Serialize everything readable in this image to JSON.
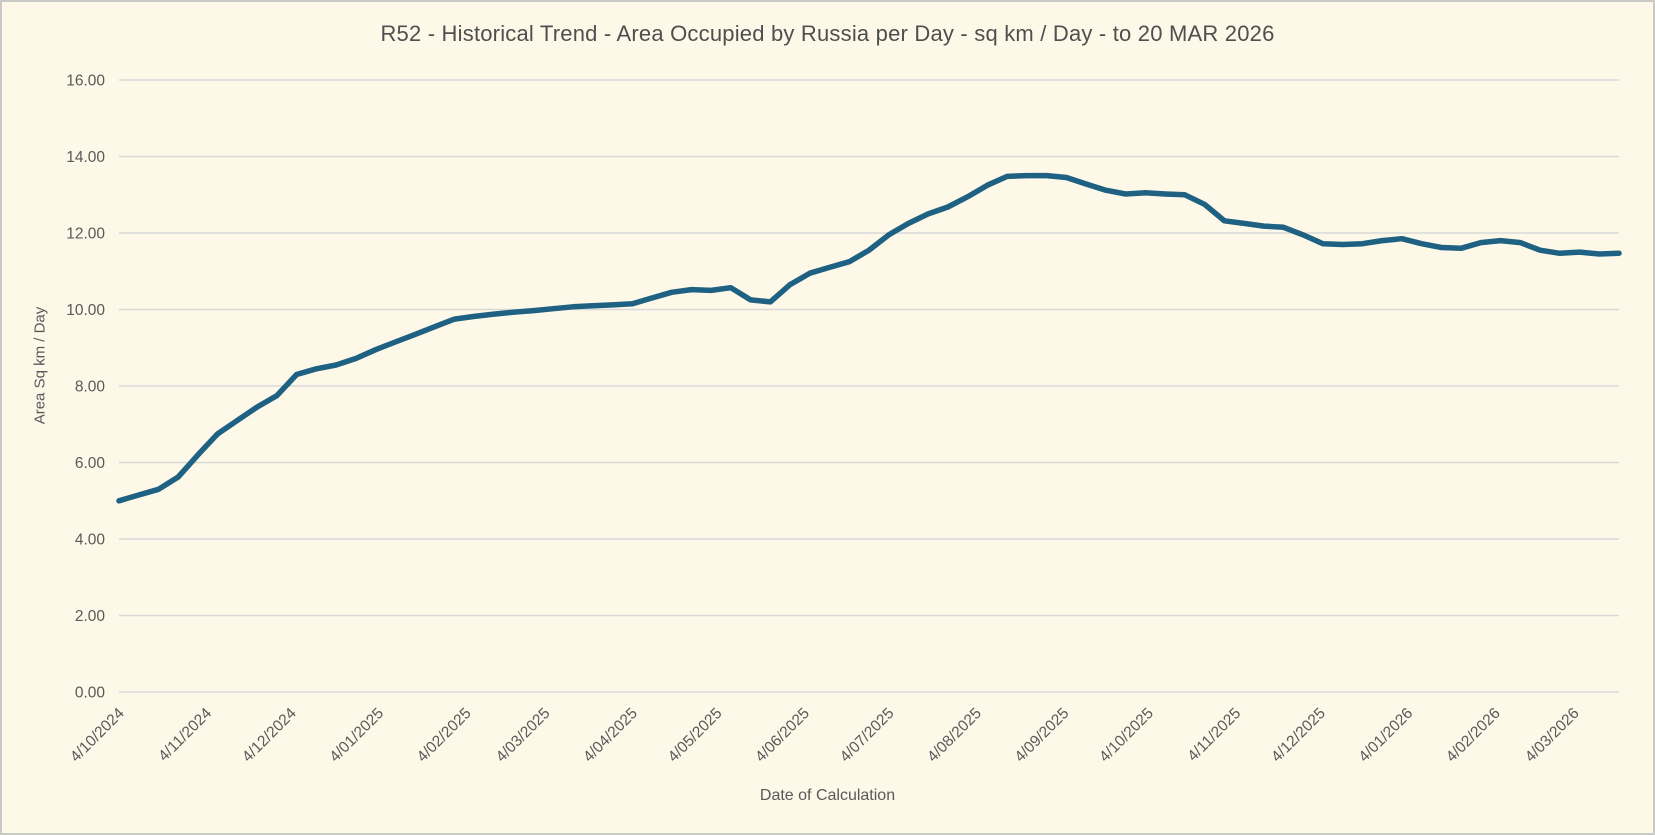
{
  "window": {
    "background_color": "#fdf8e8",
    "border_color": "#c9c9c6"
  },
  "chart_data": {
    "type": "line",
    "title": "R52 - Historical Trend - Area Occupied by Russia per Day - sq km / Day - to 20 MAR 2026",
    "xlabel": "Date of Calculation",
    "ylabel": "Area Sq km / Day",
    "ylim": [
      0,
      16
    ],
    "ytick_step": 2,
    "ytick_labels": [
      "0.00",
      "2.00",
      "4.00",
      "6.00",
      "8.00",
      "10.00",
      "12.00",
      "14.00",
      "16.00"
    ],
    "xtick_labels": [
      "4/10/2024",
      "4/11/2024",
      "4/12/2024",
      "4/01/2025",
      "4/02/2025",
      "4/03/2025",
      "4/04/2025",
      "4/05/2025",
      "4/06/2025",
      "4/07/2025",
      "4/08/2025",
      "4/09/2025",
      "4/10/2025",
      "4/11/2025",
      "4/12/2025",
      "4/01/2026",
      "4/02/2026",
      "4/03/2026"
    ],
    "grid": "horizontal",
    "gridline_color": "#d9d9d9",
    "legend": "none",
    "line_color": "#1e6182",
    "text_color": "#595959",
    "series": [
      {
        "name": "Area occupied by Russia per day (sq km / day)",
        "x": [
          "4/10/2024",
          "11/10/2024",
          "18/10/2024",
          "25/10/2024",
          "1/11/2024",
          "8/11/2024",
          "15/11/2024",
          "22/11/2024",
          "29/11/2024",
          "6/12/2024",
          "13/12/2024",
          "20/12/2024",
          "27/12/2024",
          "3/01/2025",
          "10/01/2025",
          "17/01/2025",
          "24/01/2025",
          "31/01/2025",
          "7/02/2025",
          "14/02/2025",
          "21/02/2025",
          "28/02/2025",
          "7/03/2025",
          "14/03/2025",
          "21/03/2025",
          "28/03/2025",
          "4/04/2025",
          "11/04/2025",
          "18/04/2025",
          "25/04/2025",
          "2/05/2025",
          "9/05/2025",
          "16/05/2025",
          "23/05/2025",
          "30/05/2025",
          "6/06/2025",
          "13/06/2025",
          "20/06/2025",
          "27/06/2025",
          "4/07/2025",
          "11/07/2025",
          "18/07/2025",
          "25/07/2025",
          "1/08/2025",
          "8/08/2025",
          "15/08/2025",
          "22/08/2025",
          "29/08/2025",
          "5/09/2025",
          "12/09/2025",
          "19/09/2025",
          "26/09/2025",
          "3/10/2025",
          "10/10/2025",
          "17/10/2025",
          "24/10/2025",
          "31/10/2025",
          "7/11/2025",
          "14/11/2025",
          "21/11/2025",
          "28/11/2025",
          "5/12/2025",
          "12/12/2025",
          "19/12/2025",
          "26/12/2025",
          "2/01/2026",
          "9/01/2026",
          "16/01/2026",
          "23/01/2026",
          "30/01/2026",
          "6/02/2026",
          "13/02/2026",
          "20/02/2026",
          "27/02/2026",
          "6/03/2026",
          "13/03/2026",
          "20/03/2026"
        ],
        "values": [
          5.0,
          5.15,
          5.3,
          5.62,
          6.2,
          6.75,
          7.1,
          7.45,
          7.75,
          8.3,
          8.45,
          8.55,
          8.72,
          8.95,
          9.15,
          9.35,
          9.55,
          9.75,
          9.82,
          9.88,
          9.93,
          9.97,
          10.02,
          10.07,
          10.1,
          10.12,
          10.15,
          10.3,
          10.45,
          10.52,
          10.5,
          10.57,
          10.25,
          10.2,
          10.65,
          10.95,
          11.1,
          11.25,
          11.55,
          11.95,
          12.25,
          12.5,
          12.68,
          12.95,
          13.25,
          13.48,
          13.5,
          13.5,
          13.45,
          13.28,
          13.12,
          13.02,
          13.05,
          13.02,
          13.0,
          12.75,
          12.32,
          12.25,
          12.18,
          12.15,
          11.95,
          11.72,
          11.7,
          11.72,
          11.8,
          11.85,
          11.72,
          11.62,
          11.6,
          11.75,
          11.8,
          11.75,
          11.55,
          11.47,
          11.5,
          11.45,
          11.47
        ]
      }
    ]
  }
}
